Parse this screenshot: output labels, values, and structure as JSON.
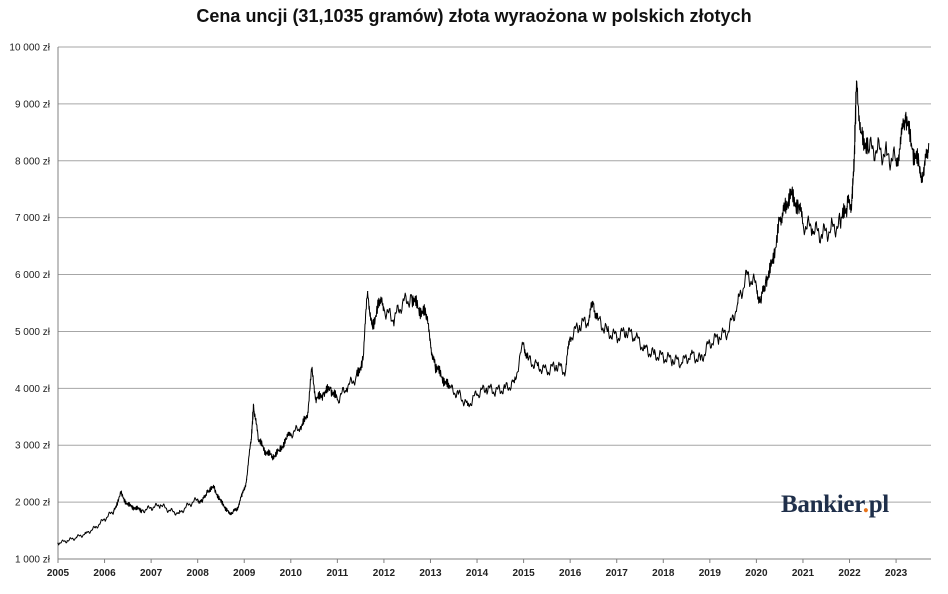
{
  "chart_data": {
    "type": "line",
    "title": "Cena uncji (31,1035 gramów) złota wyraożona w polskich złotych",
    "xlabel": "",
    "ylabel": "",
    "x_tick_labels": [
      "2005",
      "2006",
      "2007",
      "2008",
      "2009",
      "2010",
      "2011",
      "2012",
      "2013",
      "2014",
      "2015",
      "2016",
      "2017",
      "2018",
      "2019",
      "2020",
      "2021",
      "2022",
      "2023"
    ],
    "y_tick_labels": [
      "1 000 zł",
      "2 000 zł",
      "3 000 zł",
      "4 000 zł",
      "5 000 zł",
      "6 000 zł",
      "7 000 zł",
      "8 000 zł",
      "9 000 zł",
      "10 000 zł"
    ],
    "xlim": [
      2005.0,
      2023.75
    ],
    "ylim": [
      1000,
      10000
    ],
    "grid": "horizontal",
    "line_color": "#000000",
    "grid_color": "#a6a6a6",
    "series": [
      {
        "x": [
          2005.0,
          2005.2,
          2005.4,
          2005.6,
          2005.8,
          2006.0,
          2006.2,
          2006.35,
          2006.5,
          2006.65,
          2006.8,
          2007.0,
          2007.2,
          2007.4,
          2007.6,
          2007.8,
          2008.0,
          2008.1,
          2008.2,
          2008.35,
          2008.5,
          2008.65,
          2008.75,
          2008.85,
          2008.95,
          2009.05,
          2009.15,
          2009.2,
          2009.3,
          2009.45,
          2009.6,
          2009.75,
          2009.9,
          2010.0,
          2010.2,
          2010.35,
          2010.45,
          2010.55,
          2010.7,
          2010.85,
          2011.0,
          2011.2,
          2011.4,
          2011.55,
          2011.65,
          2011.75,
          2011.9,
          2012.0,
          2012.2,
          2012.4,
          2012.6,
          2012.75,
          2012.9,
          2013.0,
          2013.1,
          2013.25,
          2013.4,
          2013.6,
          2013.8,
          2014.0,
          2014.2,
          2014.4,
          2014.6,
          2014.8,
          2015.0,
          2015.1,
          2015.3,
          2015.5,
          2015.7,
          2015.9,
          2016.0,
          2016.2,
          2016.4,
          2016.5,
          2016.6,
          2016.8,
          2017.0,
          2017.2,
          2017.4,
          2017.6,
          2017.8,
          2018.0,
          2018.2,
          2018.4,
          2018.6,
          2018.8,
          2019.0,
          2019.2,
          2019.4,
          2019.6,
          2019.8,
          2020.0,
          2020.1,
          2020.2,
          2020.35,
          2020.5,
          2020.6,
          2020.75,
          2020.9,
          2021.0,
          2021.2,
          2021.4,
          2021.6,
          2021.8,
          2021.95,
          2022.05,
          2022.1,
          2022.15,
          2022.25,
          2022.4,
          2022.6,
          2022.8,
          2023.0,
          2023.1,
          2023.2,
          2023.35,
          2023.5,
          2023.6,
          2023.7
        ],
        "y": [
          1280,
          1320,
          1380,
          1450,
          1550,
          1700,
          1850,
          2150,
          1950,
          1900,
          1850,
          1900,
          1950,
          1850,
          1800,
          1950,
          2050,
          2000,
          2200,
          2250,
          2000,
          1850,
          1800,
          1900,
          2100,
          2400,
          3100,
          3700,
          3100,
          2900,
          2800,
          2900,
          3100,
          3200,
          3300,
          3500,
          4300,
          3800,
          3900,
          4000,
          3800,
          4000,
          4200,
          4500,
          5700,
          5100,
          5500,
          5400,
          5200,
          5500,
          5600,
          5400,
          5300,
          4800,
          4400,
          4200,
          4000,
          3900,
          3700,
          3900,
          4000,
          3950,
          4000,
          4100,
          4800,
          4500,
          4400,
          4300,
          4400,
          4300,
          4900,
          5100,
          5200,
          5500,
          5200,
          5000,
          4900,
          5000,
          4900,
          4700,
          4600,
          4550,
          4500,
          4450,
          4600,
          4500,
          4800,
          4900,
          5000,
          5500,
          6000,
          5800,
          5500,
          5900,
          6200,
          7000,
          7200,
          7400,
          7200,
          6900,
          6800,
          6700,
          6800,
          6900,
          7200,
          7300,
          8000,
          9400,
          8500,
          8200,
          8200,
          8100,
          8000,
          8300,
          8800,
          8200,
          7900,
          7750,
          8300
        ]
      }
    ]
  },
  "branding": {
    "logo_text_main": "Bankier",
    "logo_dot": ".",
    "logo_text_tail": "pl",
    "logo_color": "#1f2f4a",
    "logo_dot_color": "#e8731a"
  }
}
